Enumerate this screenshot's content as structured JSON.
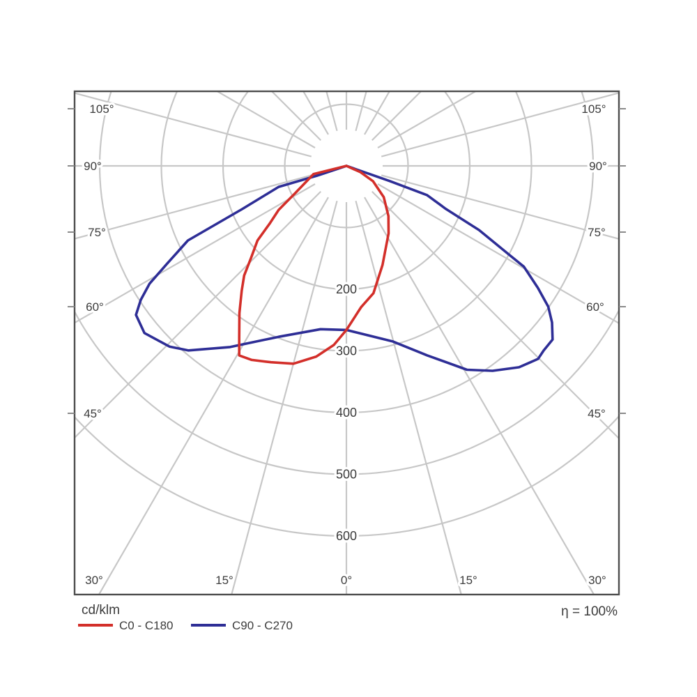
{
  "footer": {
    "unit": "cd/klm",
    "efficiency": "η = 100%"
  },
  "legend": [
    {
      "label": "C0 - C180",
      "color": "#d32f2a"
    },
    {
      "label": "C90 - C270",
      "color": "#2e2e96"
    }
  ],
  "chart_data": {
    "type": "polar",
    "description": "Luminaire luminous intensity distribution curve (polar photometric diagram), radial unit cd/klm, gamma 0° at nadir (bottom), 90° horizontal, 105° shown above horizon",
    "unit": "cd/klm",
    "efficiency_text": "η = 100%",
    "angle_grid_step_deg": 15,
    "grid_color": "#c7c7c7",
    "frame_color": "#4d4d4d",
    "radial_axis": {
      "tick_values": [
        100,
        200,
        300,
        400,
        500,
        600
      ],
      "labeled_ticks": [
        "200",
        "300",
        "400",
        "500",
        "600"
      ]
    },
    "gamma_axis_labels": {
      "left": [
        "105°",
        "90°",
        "75°",
        "60°",
        "45°"
      ],
      "bottom": [
        "30°",
        "15°",
        "0°",
        "15°",
        "30°"
      ],
      "right": [
        "45°",
        "60°",
        "75°",
        "90°",
        "105°"
      ]
    },
    "series": [
      {
        "name": "C0 - C180",
        "color": "#d32f2a",
        "points_gamma_deg_cdklm": [
          [
            -80,
            0
          ],
          [
            -76,
            55
          ],
          [
            -62,
            94
          ],
          [
            -57,
            131
          ],
          [
            -53,
            156
          ],
          [
            -50,
            188
          ],
          [
            -46,
            215
          ],
          [
            -43,
            243
          ],
          [
            -40,
            264
          ],
          [
            -36,
            295
          ],
          [
            -32,
            328
          ],
          [
            -29.5,
            353
          ],
          [
            -26,
            350
          ],
          [
            -21,
            341
          ],
          [
            -15,
            332
          ],
          [
            -9,
            313
          ],
          [
            -4,
            291
          ],
          [
            0,
            266
          ],
          [
            6,
            230
          ],
          [
            12,
            211
          ],
          [
            20,
            171
          ],
          [
            32,
            129
          ],
          [
            40,
            106
          ],
          [
            50,
            79
          ],
          [
            60,
            50
          ],
          [
            66,
            25
          ],
          [
            70,
            0
          ]
        ]
      },
      {
        "name": "C90 - C270",
        "color": "#2e2e96",
        "points_gamma_deg_cdklm": [
          [
            -72,
            0
          ],
          [
            -71.5,
            50
          ],
          [
            -72.8,
            115
          ],
          [
            -67.5,
            183
          ],
          [
            -64.8,
            284
          ],
          [
            -61.4,
            331
          ],
          [
            -59.1,
            372
          ],
          [
            -56.9,
            398
          ],
          [
            -54.7,
            418
          ],
          [
            -50.4,
            425
          ],
          [
            -44.4,
            410
          ],
          [
            -40.6,
            394
          ],
          [
            -32.7,
            349
          ],
          [
            -21.6,
            298
          ],
          [
            -9,
            268
          ],
          [
            0,
            266
          ],
          [
            14.7,
            294
          ],
          [
            23.1,
            334
          ],
          [
            30.6,
            384
          ],
          [
            35.5,
            408
          ],
          [
            40.6,
            430
          ],
          [
            44.8,
            441
          ],
          [
            46.9,
            438
          ],
          [
            49.9,
            437
          ],
          [
            52.7,
            419
          ],
          [
            55.1,
            399
          ],
          [
            57.5,
            368
          ],
          [
            60.4,
            331
          ],
          [
            61.4,
            300
          ],
          [
            64.2,
            239
          ],
          [
            66.6,
            176
          ],
          [
            70.1,
            139
          ],
          [
            70.7,
            75
          ],
          [
            71,
            0
          ]
        ]
      }
    ]
  }
}
